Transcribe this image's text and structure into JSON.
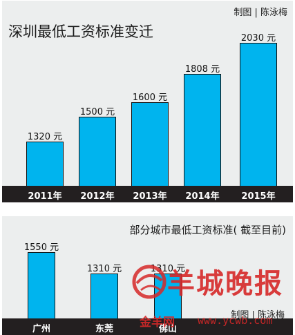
{
  "chart_data": [
    {
      "type": "bar",
      "title": "深圳最低工资标准变迁",
      "credit": "制图 | 陈泳梅",
      "categories": [
        "2011年",
        "2012年",
        "2013年",
        "2014年",
        "2015年"
      ],
      "values": [
        1320,
        1500,
        1600,
        1808,
        2030
      ],
      "value_labels": [
        "1320 元",
        "1500 元",
        "1600 元",
        "1808 元",
        "2030 元"
      ],
      "ylim": [
        1000,
        2100
      ],
      "bar_color": "#00b4ee",
      "grid": false
    },
    {
      "type": "bar",
      "title": "部分城市最低工资标准( 截至目前)",
      "credit": "制图 | 陈泳梅",
      "categories": [
        "广州",
        "东莞",
        "佛山"
      ],
      "values": [
        1550,
        1310,
        1310
      ],
      "value_labels": [
        "1550 元",
        "1310 元",
        "1310 元"
      ],
      "ylim": [
        800,
        1600
      ],
      "bar_color": "#00b4ee",
      "grid": false
    }
  ],
  "watermark": {
    "brand": "羊城晚报",
    "site_cn": "金羊网",
    "site_url": "www.ycwb.com",
    "icon": "ycwb-logo-icon",
    "color": "#d62828"
  }
}
